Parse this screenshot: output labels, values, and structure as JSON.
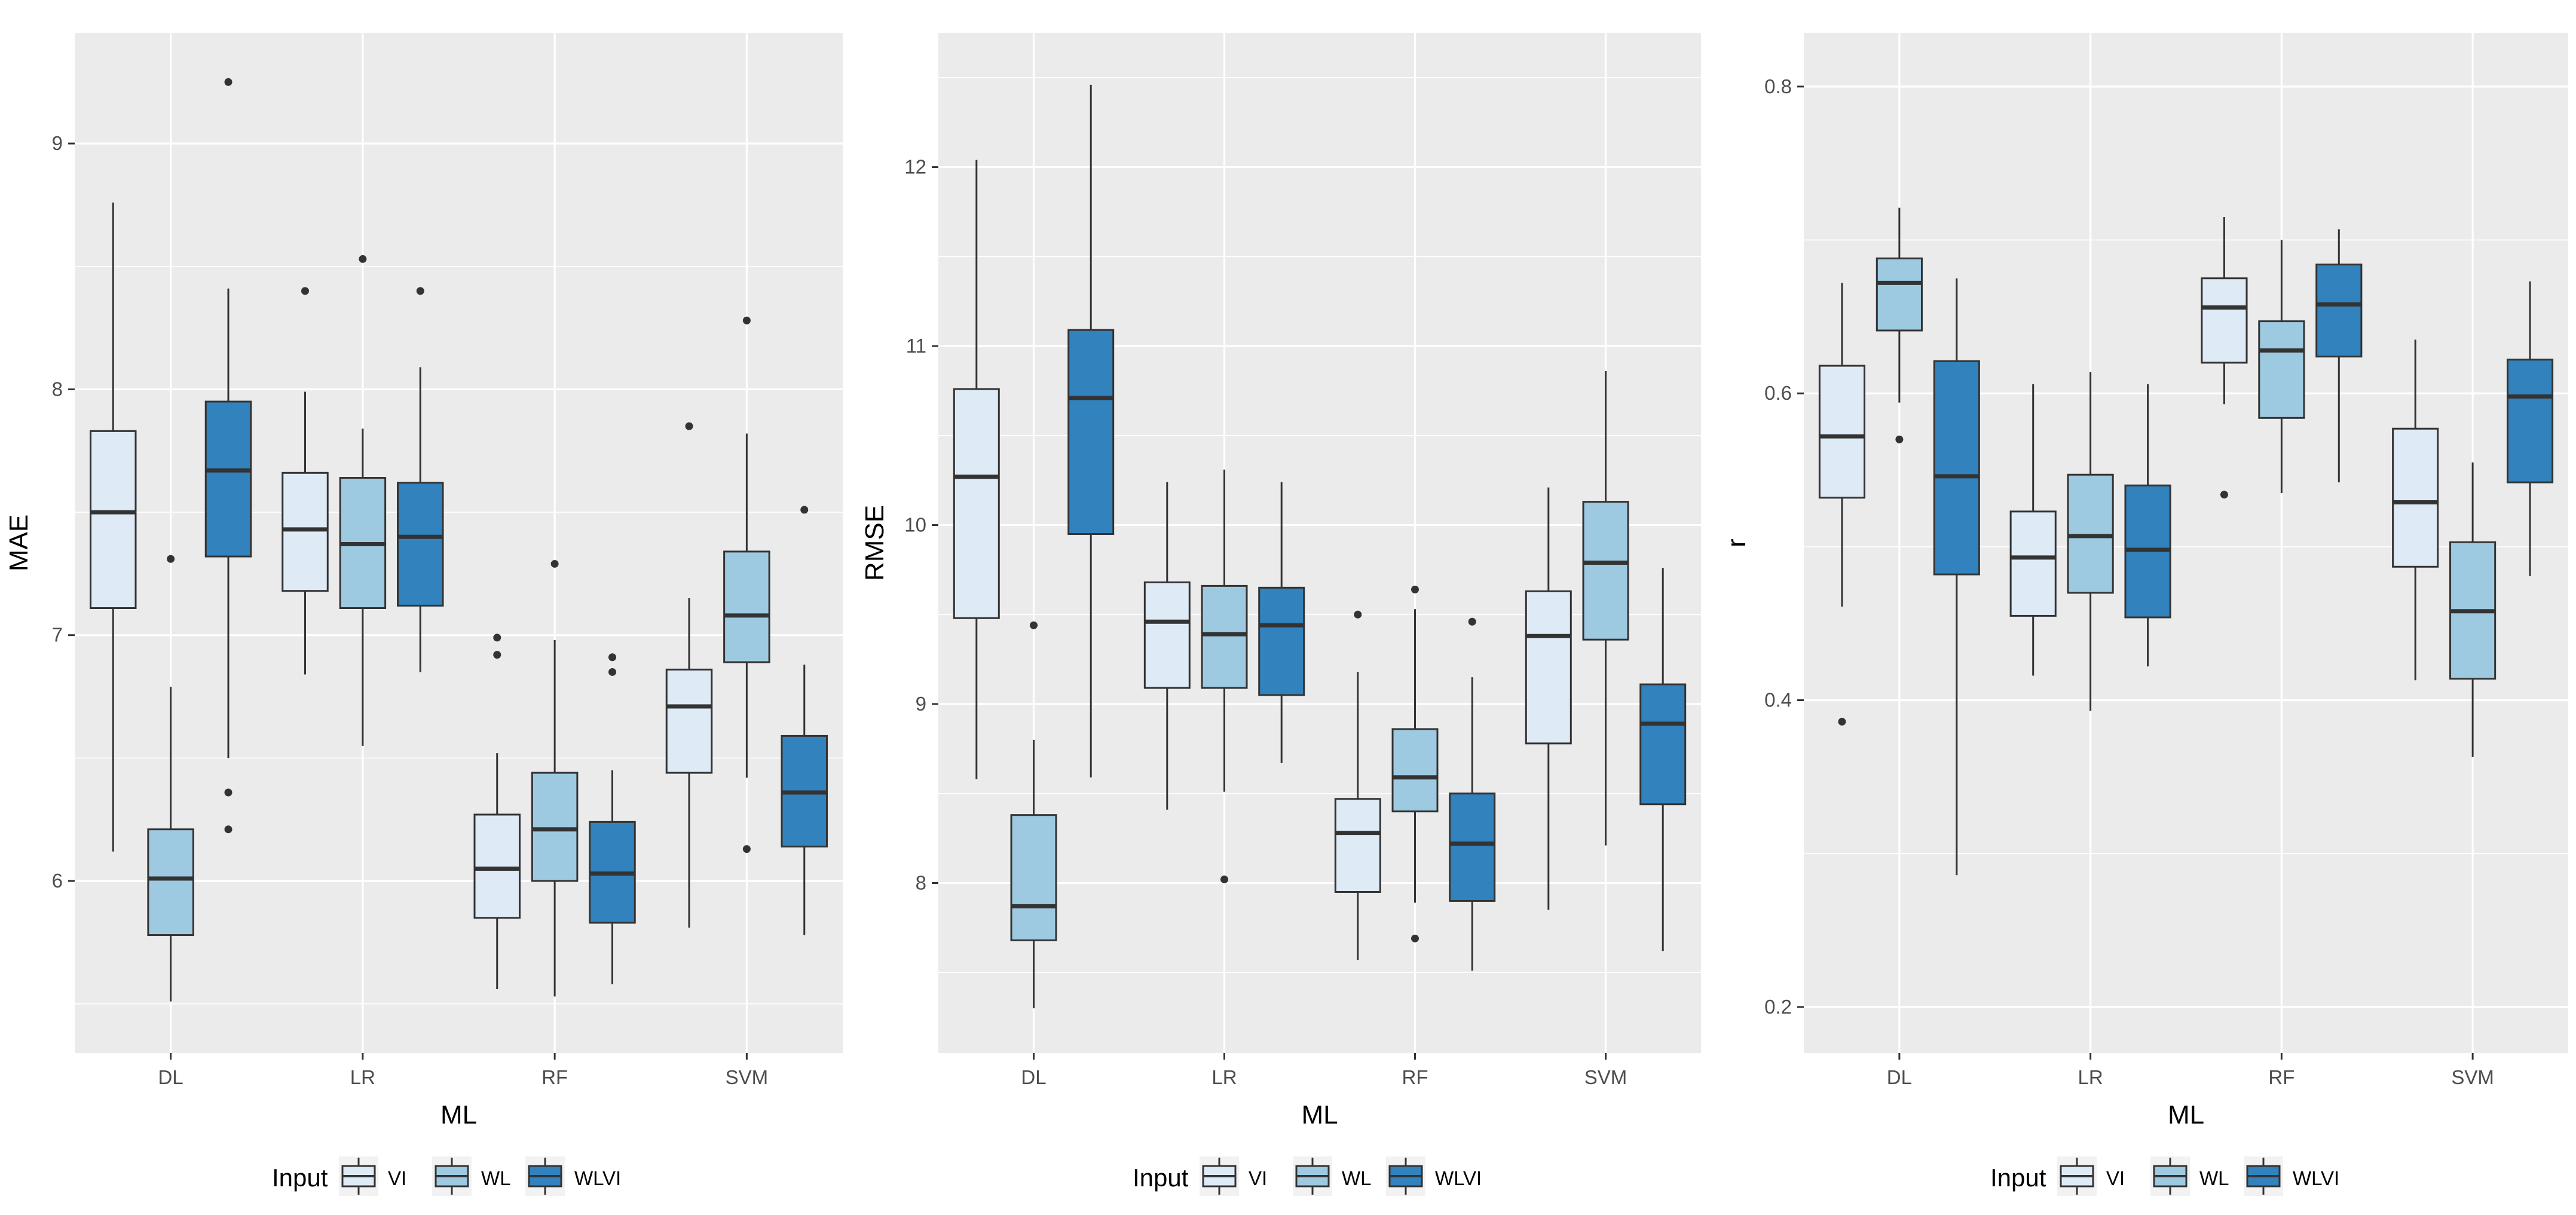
{
  "colors": {
    "VI": "#deebf7",
    "WL": "#9ecae1",
    "WLVI": "#3182bd",
    "panel": "#ebebeb",
    "grid": "#ffffff"
  },
  "chart_data": [
    {
      "type": "boxplot",
      "xlabel": "ML",
      "ylabel": "MAE",
      "categories": [
        "DL",
        "LR",
        "RF",
        "SVM"
      ],
      "ylim": [
        5.3,
        9.45
      ],
      "yticks": [
        6,
        7,
        8,
        9
      ],
      "legend": {
        "title": "Input",
        "entries": [
          "VI",
          "WL",
          "WLVI"
        ],
        "position": "bottom"
      },
      "boxes": [
        {
          "category": "DL",
          "group": "VI",
          "whisker_low": 6.12,
          "q1": 7.11,
          "median": 7.5,
          "q3": 7.83,
          "whisker_high": 8.76,
          "outliers": []
        },
        {
          "category": "DL",
          "group": "WL",
          "whisker_low": 5.51,
          "q1": 5.78,
          "median": 6.01,
          "q3": 6.21,
          "whisker_high": 6.79,
          "outliers": [
            7.31
          ]
        },
        {
          "category": "DL",
          "group": "WLVI",
          "whisker_low": 6.5,
          "q1": 7.32,
          "median": 7.67,
          "q3": 7.95,
          "whisker_high": 8.41,
          "outliers": [
            9.25,
            6.36,
            6.21
          ]
        },
        {
          "category": "LR",
          "group": "VI",
          "whisker_low": 6.84,
          "q1": 7.18,
          "median": 7.43,
          "q3": 7.66,
          "whisker_high": 7.99,
          "outliers": [
            8.4
          ]
        },
        {
          "category": "LR",
          "group": "WL",
          "whisker_low": 6.55,
          "q1": 7.11,
          "median": 7.37,
          "q3": 7.64,
          "whisker_high": 7.84,
          "outliers": [
            8.53
          ]
        },
        {
          "category": "LR",
          "group": "WLVI",
          "whisker_low": 6.85,
          "q1": 7.12,
          "median": 7.4,
          "q3": 7.62,
          "whisker_high": 8.09,
          "outliers": [
            8.4
          ]
        },
        {
          "category": "RF",
          "group": "VI",
          "whisker_low": 5.56,
          "q1": 5.85,
          "median": 6.05,
          "q3": 6.27,
          "whisker_high": 6.52,
          "outliers": [
            6.99,
            6.92
          ]
        },
        {
          "category": "RF",
          "group": "WL",
          "whisker_low": 5.53,
          "q1": 6.0,
          "median": 6.21,
          "q3": 6.44,
          "whisker_high": 6.98,
          "outliers": [
            7.29
          ]
        },
        {
          "category": "RF",
          "group": "WLVI",
          "whisker_low": 5.58,
          "q1": 5.83,
          "median": 6.03,
          "q3": 6.24,
          "whisker_high": 6.45,
          "outliers": [
            6.91,
            6.85
          ]
        },
        {
          "category": "SVM",
          "group": "VI",
          "whisker_low": 5.81,
          "q1": 6.44,
          "median": 6.71,
          "q3": 6.86,
          "whisker_high": 7.15,
          "outliers": [
            7.85
          ]
        },
        {
          "category": "SVM",
          "group": "WL",
          "whisker_low": 6.42,
          "q1": 6.89,
          "median": 7.08,
          "q3": 7.34,
          "whisker_high": 7.82,
          "outliers": [
            8.28,
            6.13
          ]
        },
        {
          "category": "SVM",
          "group": "WLVI",
          "whisker_low": 5.78,
          "q1": 6.14,
          "median": 6.36,
          "q3": 6.59,
          "whisker_high": 6.88,
          "outliers": [
            7.51
          ]
        }
      ]
    },
    {
      "type": "boxplot",
      "xlabel": "ML",
      "ylabel": "RMSE",
      "categories": [
        "DL",
        "LR",
        "RF",
        "SVM"
      ],
      "ylim": [
        7.05,
        12.75
      ],
      "yticks": [
        8,
        9,
        10,
        11,
        12
      ],
      "legend": {
        "title": "Input",
        "entries": [
          "VI",
          "WL",
          "WLVI"
        ],
        "position": "bottom"
      },
      "boxes": [
        {
          "category": "DL",
          "group": "VI",
          "whisker_low": 8.58,
          "q1": 9.48,
          "median": 10.27,
          "q3": 10.76,
          "whisker_high": 12.04,
          "outliers": []
        },
        {
          "category": "DL",
          "group": "WL",
          "whisker_low": 7.3,
          "q1": 7.68,
          "median": 7.87,
          "q3": 8.38,
          "whisker_high": 8.8,
          "outliers": [
            9.44
          ]
        },
        {
          "category": "DL",
          "group": "WLVI",
          "whisker_low": 8.59,
          "q1": 9.95,
          "median": 10.71,
          "q3": 11.09,
          "whisker_high": 12.46,
          "outliers": []
        },
        {
          "category": "LR",
          "group": "VI",
          "whisker_low": 8.41,
          "q1": 9.09,
          "median": 9.46,
          "q3": 9.68,
          "whisker_high": 10.24,
          "outliers": []
        },
        {
          "category": "LR",
          "group": "WL",
          "whisker_low": 8.51,
          "q1": 9.09,
          "median": 9.39,
          "q3": 9.66,
          "whisker_high": 10.31,
          "outliers": [
            8.02
          ]
        },
        {
          "category": "LR",
          "group": "WLVI",
          "whisker_low": 8.67,
          "q1": 9.05,
          "median": 9.44,
          "q3": 9.65,
          "whisker_high": 10.24,
          "outliers": []
        },
        {
          "category": "RF",
          "group": "VI",
          "whisker_low": 7.57,
          "q1": 7.95,
          "median": 8.28,
          "q3": 8.47,
          "whisker_high": 9.18,
          "outliers": [
            9.5
          ]
        },
        {
          "category": "RF",
          "group": "WL",
          "whisker_low": 7.89,
          "q1": 8.4,
          "median": 8.59,
          "q3": 8.86,
          "whisker_high": 9.53,
          "outliers": [
            9.64,
            7.69
          ]
        },
        {
          "category": "RF",
          "group": "WLVI",
          "whisker_low": 7.51,
          "q1": 7.9,
          "median": 8.22,
          "q3": 8.5,
          "whisker_high": 9.15,
          "outliers": [
            9.46
          ]
        },
        {
          "category": "SVM",
          "group": "VI",
          "whisker_low": 7.85,
          "q1": 8.78,
          "median": 9.38,
          "q3": 9.63,
          "whisker_high": 10.21,
          "outliers": []
        },
        {
          "category": "SVM",
          "group": "WL",
          "whisker_low": 8.21,
          "q1": 9.36,
          "median": 9.79,
          "q3": 10.13,
          "whisker_high": 10.86,
          "outliers": []
        },
        {
          "category": "SVM",
          "group": "WLVI",
          "whisker_low": 7.62,
          "q1": 8.44,
          "median": 8.89,
          "q3": 9.11,
          "whisker_high": 9.76,
          "outliers": []
        }
      ]
    },
    {
      "type": "boxplot",
      "xlabel": "ML",
      "ylabel": "r",
      "categories": [
        "DL",
        "LR",
        "RF",
        "SVM"
      ],
      "ylim": [
        0.17,
        0.835
      ],
      "yticks": [
        0.2,
        0.4,
        0.6,
        0.8
      ],
      "ytick_labels": [
        "0.2",
        "0.4",
        "0.6",
        "0.8"
      ],
      "legend": {
        "title": "Input",
        "entries": [
          "VI",
          "WL",
          "WLVI"
        ],
        "position": "bottom"
      },
      "boxes": [
        {
          "category": "DL",
          "group": "VI",
          "whisker_low": 0.461,
          "q1": 0.532,
          "median": 0.572,
          "q3": 0.618,
          "whisker_high": 0.672,
          "outliers": [
            0.386
          ]
        },
        {
          "category": "DL",
          "group": "WL",
          "whisker_low": 0.594,
          "q1": 0.641,
          "median": 0.672,
          "q3": 0.688,
          "whisker_high": 0.721,
          "outliers": [
            0.57
          ]
        },
        {
          "category": "DL",
          "group": "WLVI",
          "whisker_low": 0.286,
          "q1": 0.482,
          "median": 0.546,
          "q3": 0.621,
          "whisker_high": 0.675,
          "outliers": []
        },
        {
          "category": "LR",
          "group": "VI",
          "whisker_low": 0.416,
          "q1": 0.455,
          "median": 0.493,
          "q3": 0.523,
          "whisker_high": 0.606,
          "outliers": []
        },
        {
          "category": "LR",
          "group": "WL",
          "whisker_low": 0.393,
          "q1": 0.47,
          "median": 0.507,
          "q3": 0.547,
          "whisker_high": 0.614,
          "outliers": []
        },
        {
          "category": "LR",
          "group": "WLVI",
          "whisker_low": 0.422,
          "q1": 0.454,
          "median": 0.498,
          "q3": 0.54,
          "whisker_high": 0.606,
          "outliers": []
        },
        {
          "category": "RF",
          "group": "VI",
          "whisker_low": 0.593,
          "q1": 0.62,
          "median": 0.656,
          "q3": 0.675,
          "whisker_high": 0.715,
          "outliers": [
            0.534
          ]
        },
        {
          "category": "RF",
          "group": "WL",
          "whisker_low": 0.535,
          "q1": 0.584,
          "median": 0.628,
          "q3": 0.647,
          "whisker_high": 0.7,
          "outliers": []
        },
        {
          "category": "RF",
          "group": "WLVI",
          "whisker_low": 0.542,
          "q1": 0.624,
          "median": 0.658,
          "q3": 0.684,
          "whisker_high": 0.707,
          "outliers": []
        },
        {
          "category": "SVM",
          "group": "VI",
          "whisker_low": 0.413,
          "q1": 0.487,
          "median": 0.529,
          "q3": 0.577,
          "whisker_high": 0.635,
          "outliers": []
        },
        {
          "category": "SVM",
          "group": "WL",
          "whisker_low": 0.363,
          "q1": 0.414,
          "median": 0.458,
          "q3": 0.503,
          "whisker_high": 0.555,
          "outliers": []
        },
        {
          "category": "SVM",
          "group": "WLVI",
          "whisker_low": 0.481,
          "q1": 0.542,
          "median": 0.598,
          "q3": 0.622,
          "whisker_high": 0.673,
          "outliers": []
        }
      ]
    }
  ]
}
